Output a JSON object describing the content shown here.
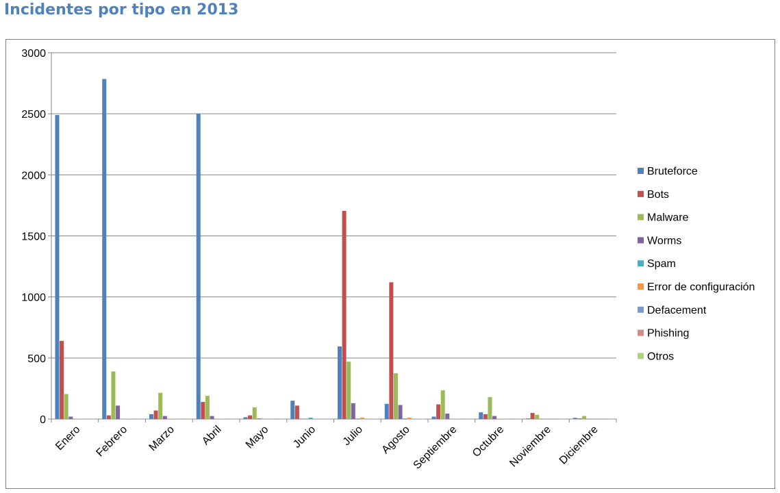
{
  "page": {
    "title": "Incidentes por tipo en 2013"
  },
  "chart_data": {
    "type": "bar",
    "title": "Incidentes por tipo en 2013",
    "xlabel": "",
    "ylabel": "",
    "ylim": [
      0,
      3000
    ],
    "yticks": [
      0,
      500,
      1000,
      1500,
      2000,
      2500,
      3000
    ],
    "grid": true,
    "legend_position": "right",
    "categories": [
      "Enero",
      "Febrero",
      "Marzo",
      "Abril",
      "Mayo",
      "Junio",
      "Julio",
      "Agosto",
      "Septiembre",
      "Octubre",
      "Noviembre",
      "Diciembre"
    ],
    "series": [
      {
        "name": "Bruteforce",
        "color": "#4f81bd",
        "values": [
          2490,
          2785,
          40,
          2500,
          15,
          150,
          595,
          125,
          20,
          55,
          5,
          10
        ]
      },
      {
        "name": "Bots",
        "color": "#c0504d",
        "values": [
          640,
          30,
          70,
          140,
          30,
          110,
          1705,
          1120,
          120,
          40,
          50,
          5
        ]
      },
      {
        "name": "Malware",
        "color": "#9bbb59",
        "values": [
          205,
          390,
          215,
          190,
          95,
          5,
          470,
          375,
          235,
          180,
          35,
          25
        ]
      },
      {
        "name": "Worms",
        "color": "#8064a2",
        "values": [
          20,
          110,
          25,
          25,
          5,
          3,
          130,
          115,
          45,
          25,
          3,
          2
        ]
      },
      {
        "name": "Spam",
        "color": "#4bacc6",
        "values": [
          2,
          2,
          2,
          2,
          2,
          12,
          5,
          5,
          2,
          2,
          1,
          1
        ]
      },
      {
        "name": "Error de configuración",
        "color": "#f79646",
        "values": [
          3,
          3,
          3,
          3,
          3,
          3,
          12,
          12,
          3,
          3,
          1,
          1
        ]
      },
      {
        "name": "Defacement",
        "color": "#7a9ccb",
        "values": [
          2,
          2,
          2,
          2,
          2,
          2,
          3,
          3,
          2,
          2,
          1,
          1
        ]
      },
      {
        "name": "Phishing",
        "color": "#d08c8b",
        "values": [
          1,
          1,
          1,
          1,
          1,
          1,
          2,
          2,
          1,
          1,
          1,
          1
        ]
      },
      {
        "name": "Otros",
        "color": "#b3cf7f",
        "values": [
          1,
          1,
          1,
          1,
          1,
          1,
          2,
          2,
          1,
          1,
          1,
          1
        ]
      }
    ]
  }
}
